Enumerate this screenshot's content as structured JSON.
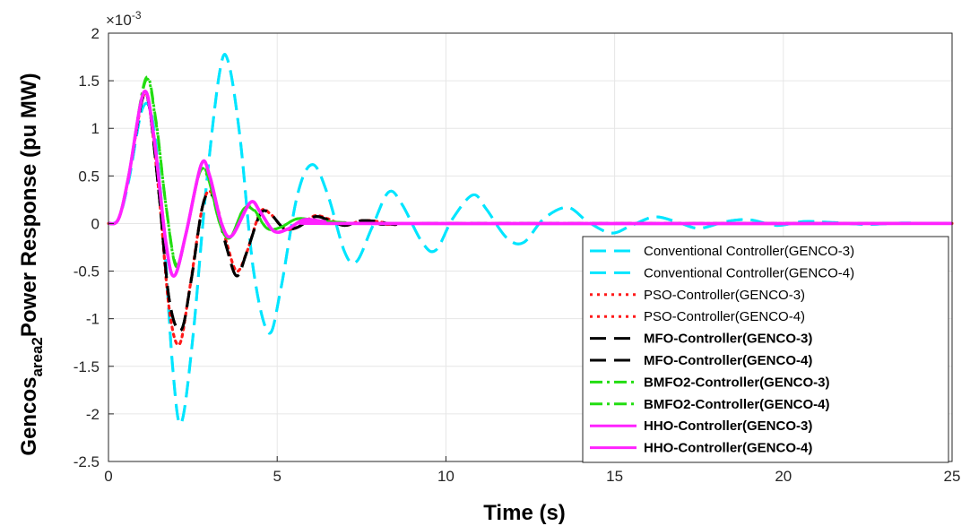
{
  "chart_data": {
    "type": "line",
    "xlabel": "Time (s)",
    "ylabel_main": "Gencos",
    "ylabel_sub": "area2",
    "ylabel_tail": "Power Response (pu MW)",
    "exponent_label": "×10",
    "exponent_power": "-3",
    "xlim": [
      0,
      25
    ],
    "ylim": [
      -2.5,
      2
    ],
    "x_ticks": [
      "0",
      "5",
      "10",
      "15",
      "20",
      "25"
    ],
    "y_ticks": [
      "2",
      "1.5",
      "1",
      "0.5",
      "0",
      "-0.5",
      "-1",
      "-1.5",
      "-2",
      "-2.5"
    ],
    "grid": true,
    "legend_position": "bottom-right",
    "series": [
      {
        "name": "Conventional Controller(GENCO-3)",
        "color": "#00e5ff",
        "dash": "dashed",
        "bold": false,
        "points": [
          [
            0,
            0
          ],
          [
            0.3,
            0.05
          ],
          [
            0.6,
            0.45
          ],
          [
            1.0,
            1.2
          ],
          [
            1.3,
            1.1
          ],
          [
            1.6,
            0.1
          ],
          [
            1.9,
            -1.5
          ],
          [
            2.15,
            -2.1
          ],
          [
            2.5,
            -1.2
          ],
          [
            2.9,
            0.4
          ],
          [
            3.3,
            1.6
          ],
          [
            3.55,
            1.7
          ],
          [
            3.9,
            0.9
          ],
          [
            4.3,
            -0.5
          ],
          [
            4.75,
            -1.15
          ],
          [
            5.1,
            -0.7
          ],
          [
            5.6,
            0.3
          ],
          [
            6.05,
            0.62
          ],
          [
            6.5,
            0.3
          ],
          [
            7.0,
            -0.3
          ],
          [
            7.35,
            -0.4
          ],
          [
            7.8,
            -0.05
          ],
          [
            8.3,
            0.33
          ],
          [
            8.7,
            0.2
          ],
          [
            9.3,
            -0.2
          ],
          [
            9.7,
            -0.28
          ],
          [
            10.2,
            0.05
          ],
          [
            10.8,
            0.3
          ],
          [
            11.2,
            0.15
          ],
          [
            11.8,
            -0.15
          ],
          [
            12.3,
            -0.2
          ],
          [
            12.9,
            0.05
          ],
          [
            13.6,
            0.17
          ],
          [
            14.2,
            0.02
          ],
          [
            14.9,
            -0.1
          ],
          [
            15.5,
            -0.02
          ],
          [
            16.2,
            0.07
          ],
          [
            16.9,
            0.01
          ],
          [
            17.5,
            -0.05
          ],
          [
            18.3,
            0.02
          ],
          [
            19.0,
            0.04
          ],
          [
            19.8,
            -0.02
          ],
          [
            20.6,
            0.02
          ],
          [
            21.5,
            0.01
          ],
          [
            22.5,
            -0.01
          ],
          [
            23.5,
            0.005
          ],
          [
            25,
            0
          ]
        ]
      },
      {
        "name": "Conventional Controller(GENCO-4)",
        "color": "#00e5ff",
        "dash": "dashed",
        "bold": false,
        "points": [
          [
            0,
            0
          ],
          [
            0.3,
            0.05
          ],
          [
            0.6,
            0.45
          ],
          [
            1.0,
            1.2
          ],
          [
            1.3,
            1.1
          ],
          [
            1.6,
            0.1
          ],
          [
            1.9,
            -1.5
          ],
          [
            2.15,
            -2.1
          ],
          [
            2.5,
            -1.2
          ],
          [
            2.9,
            0.4
          ],
          [
            3.3,
            1.6
          ],
          [
            3.55,
            1.7
          ],
          [
            3.9,
            0.9
          ],
          [
            4.3,
            -0.5
          ],
          [
            4.75,
            -1.15
          ],
          [
            5.1,
            -0.7
          ],
          [
            5.6,
            0.3
          ],
          [
            6.05,
            0.62
          ],
          [
            6.5,
            0.3
          ],
          [
            7.0,
            -0.3
          ],
          [
            7.35,
            -0.4
          ],
          [
            7.8,
            -0.05
          ],
          [
            8.3,
            0.33
          ],
          [
            8.7,
            0.2
          ],
          [
            9.3,
            -0.2
          ],
          [
            9.7,
            -0.28
          ],
          [
            10.2,
            0.05
          ],
          [
            10.8,
            0.3
          ],
          [
            11.2,
            0.15
          ],
          [
            11.8,
            -0.15
          ],
          [
            12.3,
            -0.2
          ],
          [
            12.9,
            0.05
          ],
          [
            13.6,
            0.17
          ],
          [
            14.2,
            0.02
          ],
          [
            14.9,
            -0.1
          ],
          [
            15.5,
            -0.02
          ],
          [
            16.2,
            0.07
          ],
          [
            16.9,
            0.01
          ],
          [
            17.5,
            -0.05
          ],
          [
            18.3,
            0.02
          ],
          [
            19.0,
            0.04
          ],
          [
            19.8,
            -0.02
          ],
          [
            20.6,
            0.02
          ],
          [
            21.5,
            0.01
          ],
          [
            22.5,
            -0.01
          ],
          [
            23.5,
            0.005
          ],
          [
            25,
            0
          ]
        ]
      },
      {
        "name": "PSO-Controller(GENCO-3)",
        "color": "#ff1a1a",
        "dash": "dotted",
        "bold": false,
        "points": [
          [
            0,
            0
          ],
          [
            0.3,
            0.05
          ],
          [
            0.6,
            0.5
          ],
          [
            1.0,
            1.3
          ],
          [
            1.2,
            1.25
          ],
          [
            1.5,
            0.3
          ],
          [
            1.8,
            -0.9
          ],
          [
            2.1,
            -1.27
          ],
          [
            2.4,
            -0.7
          ],
          [
            2.8,
            0.2
          ],
          [
            3.1,
            0.3
          ],
          [
            3.5,
            -0.2
          ],
          [
            3.8,
            -0.5
          ],
          [
            4.1,
            -0.3
          ],
          [
            4.5,
            0.12
          ],
          [
            4.8,
            0.1
          ],
          [
            5.2,
            -0.05
          ],
          [
            5.6,
            -0.04
          ],
          [
            6.1,
            0.08
          ],
          [
            6.5,
            0.05
          ],
          [
            7.0,
            -0.02
          ],
          [
            7.5,
            0.03
          ],
          [
            8.0,
            0.02
          ],
          [
            8.5,
            -0.01
          ],
          [
            9.5,
            0
          ],
          [
            25,
            0
          ]
        ]
      },
      {
        "name": "PSO-Controller(GENCO-4)",
        "color": "#ff1a1a",
        "dash": "dotted",
        "bold": false,
        "points": [
          [
            0,
            0
          ],
          [
            0.3,
            0.05
          ],
          [
            0.6,
            0.5
          ],
          [
            1.0,
            1.3
          ],
          [
            1.2,
            1.25
          ],
          [
            1.5,
            0.3
          ],
          [
            1.8,
            -0.9
          ],
          [
            2.1,
            -1.27
          ],
          [
            2.4,
            -0.7
          ],
          [
            2.8,
            0.2
          ],
          [
            3.1,
            0.3
          ],
          [
            3.5,
            -0.2
          ],
          [
            3.8,
            -0.5
          ],
          [
            4.1,
            -0.3
          ],
          [
            4.5,
            0.12
          ],
          [
            4.8,
            0.1
          ],
          [
            5.2,
            -0.05
          ],
          [
            5.6,
            -0.04
          ],
          [
            6.1,
            0.08
          ],
          [
            6.5,
            0.05
          ],
          [
            7.0,
            -0.02
          ],
          [
            7.5,
            0.03
          ],
          [
            8.0,
            0.02
          ],
          [
            8.5,
            -0.01
          ],
          [
            9.5,
            0
          ],
          [
            25,
            0
          ]
        ]
      },
      {
        "name": "MFO-Controller(GENCO-3)",
        "color": "#000000",
        "dash": "dashed",
        "bold": true,
        "points": [
          [
            0,
            0
          ],
          [
            0.3,
            0.05
          ],
          [
            0.6,
            0.5
          ],
          [
            1.0,
            1.3
          ],
          [
            1.2,
            1.25
          ],
          [
            1.5,
            0.3
          ],
          [
            1.8,
            -0.8
          ],
          [
            2.15,
            -1.12
          ],
          [
            2.45,
            -0.6
          ],
          [
            2.8,
            0.2
          ],
          [
            3.1,
            0.28
          ],
          [
            3.5,
            -0.25
          ],
          [
            3.8,
            -0.55
          ],
          [
            4.1,
            -0.3
          ],
          [
            4.5,
            0.1
          ],
          [
            4.8,
            0.1
          ],
          [
            5.2,
            -0.05
          ],
          [
            5.6,
            -0.04
          ],
          [
            6.1,
            0.07
          ],
          [
            6.5,
            0.04
          ],
          [
            7.0,
            -0.02
          ],
          [
            7.5,
            0.03
          ],
          [
            8.0,
            0.02
          ],
          [
            8.5,
            -0.01
          ],
          [
            9.5,
            0
          ],
          [
            25,
            0
          ]
        ]
      },
      {
        "name": "MFO-Controller(GENCO-4)",
        "color": "#000000",
        "dash": "dashed",
        "bold": true,
        "points": [
          [
            0,
            0
          ],
          [
            0.3,
            0.05
          ],
          [
            0.6,
            0.5
          ],
          [
            1.0,
            1.3
          ],
          [
            1.2,
            1.25
          ],
          [
            1.5,
            0.3
          ],
          [
            1.8,
            -0.8
          ],
          [
            2.15,
            -1.12
          ],
          [
            2.45,
            -0.6
          ],
          [
            2.8,
            0.2
          ],
          [
            3.1,
            0.28
          ],
          [
            3.5,
            -0.25
          ],
          [
            3.8,
            -0.55
          ],
          [
            4.1,
            -0.3
          ],
          [
            4.5,
            0.1
          ],
          [
            4.8,
            0.1
          ],
          [
            5.2,
            -0.05
          ],
          [
            5.6,
            -0.04
          ],
          [
            6.1,
            0.07
          ],
          [
            6.5,
            0.04
          ],
          [
            7.0,
            -0.02
          ],
          [
            7.5,
            0.03
          ],
          [
            8.0,
            0.02
          ],
          [
            8.5,
            -0.01
          ],
          [
            9.5,
            0
          ],
          [
            25,
            0
          ]
        ]
      },
      {
        "name": "BMFO2-Controller(GENCO-3)",
        "color": "#22dd11",
        "dash": "dashdot",
        "bold": true,
        "points": [
          [
            0,
            0
          ],
          [
            0.3,
            0.05
          ],
          [
            0.6,
            0.5
          ],
          [
            1.1,
            1.52
          ],
          [
            1.4,
            1.1
          ],
          [
            1.7,
            0.2
          ],
          [
            2.0,
            -0.45
          ],
          [
            2.3,
            -0.1
          ],
          [
            2.7,
            0.55
          ],
          [
            2.95,
            0.5
          ],
          [
            3.3,
            0
          ],
          [
            3.6,
            -0.15
          ],
          [
            4.0,
            0.15
          ],
          [
            4.3,
            0.15
          ],
          [
            4.7,
            -0.05
          ],
          [
            5.1,
            -0.04
          ],
          [
            5.6,
            0.05
          ],
          [
            6.2,
            0.03
          ],
          [
            7.0,
            0.01
          ],
          [
            8.0,
            0
          ],
          [
            25,
            0
          ]
        ]
      },
      {
        "name": "BMFO2-Controller(GENCO-4)",
        "color": "#22dd11",
        "dash": "dashdot",
        "bold": true,
        "points": [
          [
            0,
            0
          ],
          [
            0.3,
            0.05
          ],
          [
            0.6,
            0.5
          ],
          [
            1.1,
            1.5
          ],
          [
            1.4,
            1.08
          ],
          [
            1.7,
            0.2
          ],
          [
            2.0,
            -0.43
          ],
          [
            2.3,
            -0.1
          ],
          [
            2.7,
            0.53
          ],
          [
            2.95,
            0.48
          ],
          [
            3.3,
            0
          ],
          [
            3.6,
            -0.15
          ],
          [
            4.0,
            0.15
          ],
          [
            4.3,
            0.14
          ],
          [
            4.7,
            -0.05
          ],
          [
            5.1,
            -0.04
          ],
          [
            5.6,
            0.05
          ],
          [
            6.2,
            0.03
          ],
          [
            7.0,
            0.01
          ],
          [
            8.0,
            0
          ],
          [
            25,
            0
          ]
        ]
      },
      {
        "name": "HHO-Controller(GENCO-3)",
        "color": "#ff22ff",
        "dash": "solid",
        "bold": true,
        "points": [
          [
            0,
            0
          ],
          [
            0.3,
            0.05
          ],
          [
            0.6,
            0.5
          ],
          [
            1.05,
            1.38
          ],
          [
            1.35,
            0.9
          ],
          [
            1.7,
            -0.2
          ],
          [
            1.95,
            -0.55
          ],
          [
            2.3,
            -0.1
          ],
          [
            2.75,
            0.62
          ],
          [
            3.0,
            0.5
          ],
          [
            3.35,
            0
          ],
          [
            3.65,
            -0.13
          ],
          [
            4.2,
            0.22
          ],
          [
            4.5,
            0.12
          ],
          [
            4.9,
            -0.08
          ],
          [
            5.3,
            -0.06
          ],
          [
            5.8,
            0.04
          ],
          [
            6.4,
            0.02
          ],
          [
            7.2,
            0
          ],
          [
            25,
            0
          ]
        ]
      },
      {
        "name": "HHO-Controller(GENCO-4)",
        "color": "#ff22ff",
        "dash": "solid",
        "bold": true,
        "points": [
          [
            0,
            0
          ],
          [
            0.3,
            0.05
          ],
          [
            0.6,
            0.5
          ],
          [
            1.05,
            1.38
          ],
          [
            1.35,
            0.9
          ],
          [
            1.7,
            -0.2
          ],
          [
            1.95,
            -0.55
          ],
          [
            2.3,
            -0.1
          ],
          [
            2.75,
            0.62
          ],
          [
            3.0,
            0.5
          ],
          [
            3.35,
            0
          ],
          [
            3.65,
            -0.13
          ],
          [
            4.2,
            0.22
          ],
          [
            4.5,
            0.12
          ],
          [
            4.9,
            -0.08
          ],
          [
            5.3,
            -0.06
          ],
          [
            5.8,
            0.04
          ],
          [
            6.4,
            0.02
          ],
          [
            7.2,
            0
          ],
          [
            25,
            0
          ]
        ]
      }
    ]
  }
}
